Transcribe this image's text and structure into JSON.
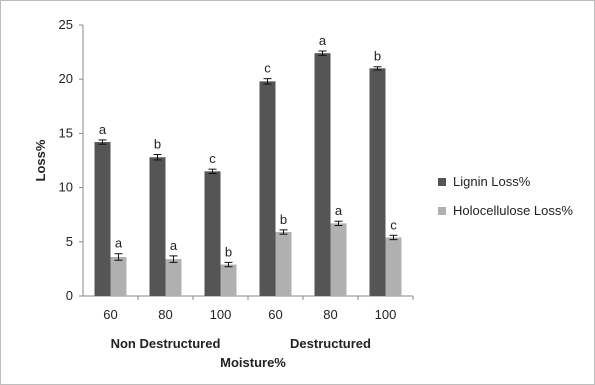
{
  "chart_data": {
    "type": "bar",
    "ylabel": "Loss%",
    "xlabel": "Moisture%",
    "ylim": [
      0,
      25
    ],
    "yticks": [
      0,
      5,
      10,
      15,
      20,
      25
    ],
    "categories": [
      "60",
      "80",
      "100",
      "60",
      "80",
      "100"
    ],
    "groups": [
      {
        "label": "Non Destructured",
        "categories": [
          "60",
          "80",
          "100"
        ]
      },
      {
        "label": "Destructured",
        "categories": [
          "60",
          "80",
          "100"
        ]
      }
    ],
    "series": [
      {
        "name": "Lignin Loss%",
        "color": "#555555",
        "values": [
          14.2,
          12.8,
          11.5,
          19.8,
          22.4,
          21.0
        ],
        "errors": [
          0.2,
          0.25,
          0.2,
          0.25,
          0.2,
          0.15
        ],
        "significance": [
          "a",
          "b",
          "c",
          "c",
          "a",
          "b"
        ]
      },
      {
        "name": "Holocellulose Loss%",
        "color": "#b0b0b0",
        "values": [
          3.6,
          3.4,
          2.9,
          5.9,
          6.7,
          5.4
        ],
        "errors": [
          0.3,
          0.3,
          0.2,
          0.2,
          0.2,
          0.2
        ],
        "significance": [
          "a",
          "a",
          "b",
          "b",
          "a",
          "c"
        ]
      }
    ],
    "legend": "right",
    "grid": false
  }
}
